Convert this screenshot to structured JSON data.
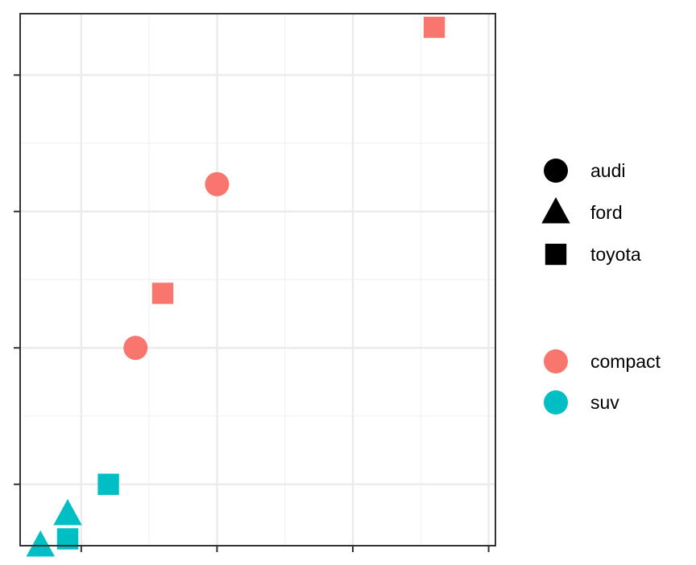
{
  "chart_data": {
    "type": "scatter",
    "title": "",
    "xlabel": "",
    "ylabel": "",
    "xlim": [
      0.55,
      4.05
    ],
    "ylim": [
      0.55,
      4.45
    ],
    "grid": true,
    "show_tick_labels": false,
    "points": [
      {
        "x": 0.7,
        "y": 0.55,
        "manufacturer": "ford",
        "class": "suv"
      },
      {
        "x": 0.9,
        "y": 0.78,
        "manufacturer": "ford",
        "class": "suv"
      },
      {
        "x": 0.9,
        "y": 0.6,
        "manufacturer": "toyota",
        "class": "suv"
      },
      {
        "x": 1.2,
        "y": 1.0,
        "manufacturer": "toyota",
        "class": "suv"
      },
      {
        "x": 1.4,
        "y": 2.0,
        "manufacturer": "audi",
        "class": "compact"
      },
      {
        "x": 1.6,
        "y": 2.4,
        "manufacturer": "toyota",
        "class": "compact"
      },
      {
        "x": 2.0,
        "y": 3.2,
        "manufacturer": "audi",
        "class": "compact"
      },
      {
        "x": 3.6,
        "y": 4.35,
        "manufacturer": "toyota",
        "class": "compact"
      }
    ],
    "legend": {
      "placement": "right",
      "shape": [
        {
          "label": "audi",
          "shape": "circle"
        },
        {
          "label": "ford",
          "shape": "triangle"
        },
        {
          "label": "toyota",
          "shape": "square"
        }
      ],
      "color": [
        {
          "label": "compact",
          "color": "#F8766D"
        },
        {
          "label": "suv",
          "color": "#00BFC4"
        }
      ]
    }
  }
}
